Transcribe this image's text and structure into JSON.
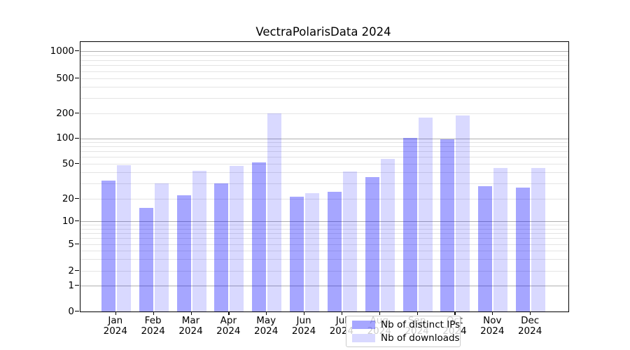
{
  "title": "VectraPolarisData 2024",
  "colors": {
    "bar_ips": "rgba(0,0,255,0.35)",
    "bar_downloads": "rgba(0,0,255,0.15)",
    "grid_major": "#b0b0b0",
    "grid_minor": "#e4e4e4",
    "axis": "#000000"
  },
  "chart_data": {
    "type": "bar",
    "title": "VectraPolarisData 2024",
    "categories": [
      "Jan 2024",
      "Feb 2024",
      "Mar 2024",
      "Apr 2024",
      "May 2024",
      "Jun 2024",
      "Jul 2024",
      "Aug 2024",
      "Sep 2024",
      "Oct 2024",
      "Nov 2024",
      "Dec 2024"
    ],
    "series": [
      {
        "name": "Nb of distinct IPs",
        "values": [
          32,
          15,
          22,
          30,
          52,
          21,
          24,
          35,
          102,
          97,
          28,
          27
        ]
      },
      {
        "name": "Nb of downloads",
        "values": [
          48,
          30,
          42,
          47,
          200,
          23,
          41,
          57,
          178,
          190,
          45,
          45
        ]
      }
    ],
    "ylabel": "",
    "xlabel": "",
    "yscale": "symlog",
    "y_ticks": [
      0,
      1,
      2,
      5,
      10,
      20,
      50,
      100,
      200,
      500,
      1000
    ],
    "y_minor_ticks": [
      3,
      4,
      6,
      7,
      8,
      9,
      30,
      40,
      60,
      70,
      80,
      90,
      300,
      400,
      600,
      700,
      800,
      900
    ],
    "ylim": [
      0,
      1300
    ],
    "grid": "horizontal major+minor",
    "legend_position": "lower center"
  },
  "y_axis": {
    "tick_labels": [
      "0",
      "1",
      "2",
      "5",
      "10",
      "20",
      "50",
      "100",
      "200",
      "500",
      "1000"
    ]
  },
  "legend": {
    "items": [
      {
        "label": "Nb of distinct IPs",
        "swatch": "bar_ips"
      },
      {
        "label": "Nb of downloads",
        "swatch": "bar_downloads"
      }
    ]
  }
}
